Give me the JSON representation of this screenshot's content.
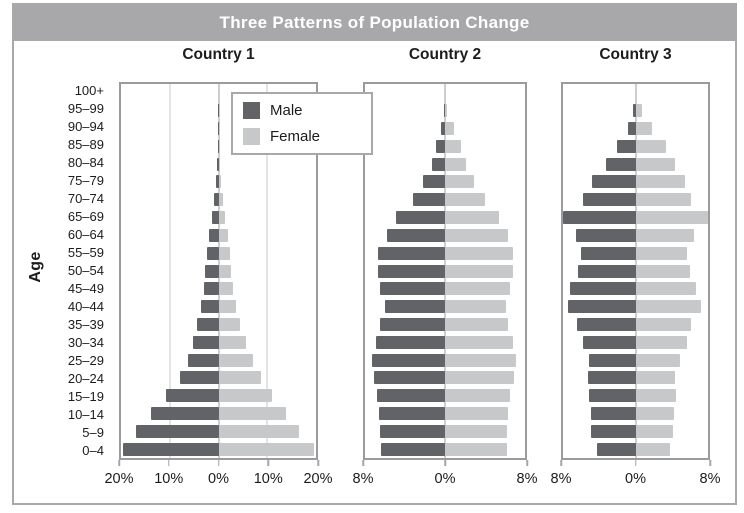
{
  "title": "Three Patterns of Population Change",
  "y_axis": {
    "label": "Age"
  },
  "legend": {
    "male_label": "Male",
    "female_label": "Female"
  },
  "colors": {
    "male": "#616367",
    "female": "#c6c8ca",
    "title_bar": "#a8a8aa",
    "title_text": "#ffffff",
    "frame_border": "#a8a8aa",
    "panel_border": "#9b9b9d",
    "gridline": "#c9c9cb",
    "center_line": "#9e9ea0",
    "tick": "#a5a5a7"
  },
  "age_groups": [
    "100+",
    "95–99",
    "90–94",
    "85–89",
    "80–84",
    "75–79",
    "70–74",
    "65–69",
    "60–64",
    "55–59",
    "50–54",
    "45–49",
    "40–44",
    "35–39",
    "30–34",
    "25–29",
    "20–24",
    "15–19",
    "10–14",
    "5–9",
    "0–4"
  ],
  "chart_data": [
    {
      "type": "bar",
      "subtype": "population_pyramid",
      "title": "Country 1",
      "pattern": "expanding",
      "axis_max_percent": 20,
      "xlim": [
        -20,
        20
      ],
      "x_tick_labels": [
        "20%",
        "10%",
        "0%",
        "10%",
        "20%"
      ],
      "grid": true,
      "categories": [
        "100+",
        "95–99",
        "90–94",
        "85–89",
        "80–84",
        "75–79",
        "70–74",
        "65–69",
        "60–64",
        "55–59",
        "50–54",
        "45–49",
        "40–44",
        "35–39",
        "30–34",
        "25–29",
        "20–24",
        "15–19",
        "10–14",
        "5–9",
        "0–4"
      ],
      "series": [
        {
          "name": "Male",
          "values": [
            0,
            0.05,
            0.1,
            0.15,
            0.25,
            0.5,
            1.0,
            1.4,
            1.9,
            2.3,
            2.7,
            3.0,
            3.6,
            4.4,
            5.2,
            6.3,
            8.0,
            10.8,
            13.8,
            17.0,
            19.5
          ]
        },
        {
          "name": "Female",
          "values": [
            0,
            0.05,
            0.1,
            0.15,
            0.25,
            0.5,
            1.0,
            1.4,
            2.0,
            2.4,
            2.6,
            3.0,
            3.6,
            4.4,
            5.6,
            7.0,
            8.8,
            11.0,
            13.9,
            16.6,
            19.6
          ]
        }
      ]
    },
    {
      "type": "bar",
      "subtype": "population_pyramid",
      "title": "Country 2",
      "pattern": "stable",
      "axis_max_percent": 8,
      "xlim": [
        -8,
        8
      ],
      "x_tick_labels": [
        "8%",
        "0%",
        "8%"
      ],
      "grid": false,
      "categories": [
        "100+",
        "95–99",
        "90–94",
        "85–89",
        "80–84",
        "75–79",
        "70–74",
        "65–69",
        "60–64",
        "55–59",
        "50–54",
        "45–49",
        "40–44",
        "35–39",
        "30–34",
        "25–29",
        "20–24",
        "15–19",
        "10–14",
        "5–9",
        "0–4"
      ],
      "series": [
        {
          "name": "Male",
          "values": [
            0,
            0.1,
            0.4,
            0.9,
            1.3,
            2.2,
            3.2,
            4.9,
            5.8,
            6.7,
            6.7,
            6.5,
            6.0,
            6.5,
            6.9,
            7.3,
            7.1,
            6.8,
            6.6,
            6.5,
            6.4
          ]
        },
        {
          "name": "Female",
          "values": [
            0,
            0.2,
            0.9,
            1.6,
            2.1,
            2.9,
            4.0,
            5.4,
            6.3,
            6.8,
            6.8,
            6.5,
            6.1,
            6.3,
            6.8,
            7.1,
            6.9,
            6.5,
            6.3,
            6.2,
            6.2
          ]
        }
      ]
    },
    {
      "type": "bar",
      "subtype": "population_pyramid",
      "title": "Country 3",
      "pattern": "declining",
      "axis_max_percent": 8,
      "xlim": [
        -8,
        8
      ],
      "x_tick_labels": [
        "8%",
        "0%",
        "8%"
      ],
      "grid": false,
      "categories": [
        "100+",
        "95–99",
        "90–94",
        "85–89",
        "80–84",
        "75–79",
        "70–74",
        "65–69",
        "60–64",
        "55–59",
        "50–54",
        "45–49",
        "40–44",
        "35–39",
        "30–34",
        "25–29",
        "20–24",
        "15–19",
        "10–14",
        "5–9",
        "0–4"
      ],
      "series": [
        {
          "name": "Male",
          "values": [
            0,
            0.3,
            0.8,
            2.0,
            3.3,
            4.8,
            5.8,
            8.0,
            6.6,
            6.0,
            6.4,
            7.2,
            7.4,
            6.5,
            5.8,
            5.1,
            5.2,
            5.1,
            4.9,
            4.9,
            4.3
          ]
        },
        {
          "name": "Female",
          "values": [
            0,
            0.7,
            1.8,
            3.4,
            4.4,
            5.5,
            6.1,
            8.0,
            6.4,
            5.7,
            6.0,
            6.7,
            7.2,
            6.1,
            5.7,
            4.9,
            4.4,
            4.5,
            4.3,
            4.1,
            3.8
          ]
        }
      ]
    }
  ]
}
